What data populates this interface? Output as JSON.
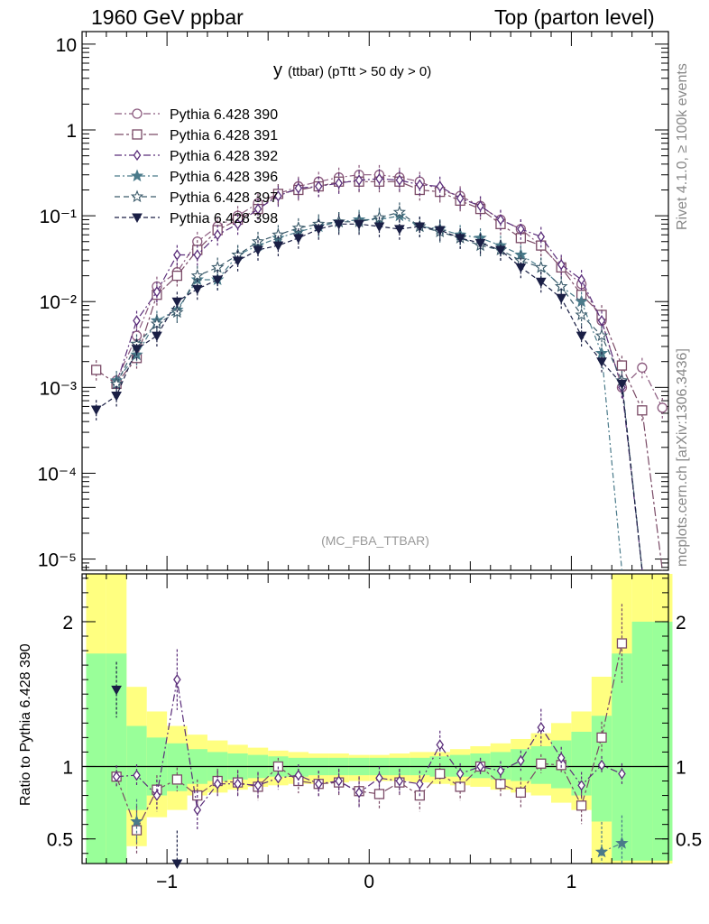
{
  "header": {
    "left": "1960 GeV ppbar",
    "right": "Top (parton level)"
  },
  "side": {
    "rivet": "Rivet 4.1.0, ≥ 100k events",
    "mcplots": "mcplots.cern.ch [arXiv:1306.3436]"
  },
  "chart_data": {
    "type": "line",
    "title": "y (ttbar) (pTtt > 50 dy > 0)",
    "title_main": "y",
    "title_rest": "(ttbar) (pTtt > 50 dy > 0)",
    "analysis": "(MC_FBA_TTBAR)",
    "xlabel": "",
    "ylabel_main": "",
    "ylabel_ratio": "Ratio to Pythia 6.428 390",
    "xlim": [
      -1.42,
      1.48
    ],
    "ylim_main": [
      7.4e-06,
      14
    ],
    "ylim_ratio": [
      0.33,
      2.33
    ],
    "x_ticks": [
      -1,
      0,
      1
    ],
    "x_tick_labels": [
      "−1",
      "0",
      "1"
    ],
    "y_main_tick_labels": [
      "10",
      "1",
      "10⁻¹",
      "10⁻²",
      "10⁻³",
      "10⁻⁴",
      "10⁻⁵"
    ],
    "y_ratio_ticks": [
      0.5,
      1,
      2
    ],
    "y_ratio_tick_labels": [
      "0.5",
      "1",
      "2"
    ],
    "reference_line": 1,
    "x": [
      -1.35,
      -1.25,
      -1.15,
      -1.05,
      -0.95,
      -0.85,
      -0.75,
      -0.65,
      -0.55,
      -0.45,
      -0.35,
      -0.25,
      -0.15,
      -0.05,
      0.05,
      0.15,
      0.25,
      0.35,
      0.45,
      0.55,
      0.65,
      0.75,
      0.85,
      0.95,
      1.05,
      1.15,
      1.25,
      1.35,
      1.45
    ],
    "series": [
      {
        "name": "Pythia 6.428 390",
        "color": "#8b5a7e",
        "marker": "circle",
        "dash": "8,3,2,3",
        "values": [
          0,
          0.0012,
          0.004,
          0.015,
          0.022,
          0.05,
          0.075,
          0.1,
          0.14,
          0.18,
          0.22,
          0.25,
          0.28,
          0.3,
          0.3,
          0.28,
          0.25,
          0.2,
          0.17,
          0.13,
          0.09,
          0.07,
          0.045,
          0.025,
          0.016,
          0.006,
          0.001,
          0.0017,
          0.00058
        ]
      },
      {
        "name": "Pythia 6.428 391",
        "color": "#7a4a66",
        "marker": "square",
        "dash": "10,3,3,3",
        "values": [
          0.0016,
          0.0011,
          0.0022,
          0.012,
          0.02,
          0.04,
          0.068,
          0.09,
          0.12,
          0.18,
          0.2,
          0.22,
          0.25,
          0.25,
          0.25,
          0.25,
          0.2,
          0.19,
          0.15,
          0.12,
          0.08,
          0.055,
          0.045,
          0.025,
          0.012,
          0.007,
          0.0018,
          0.00054,
          0
        ]
      },
      {
        "name": "Pythia 6.428 392",
        "color": "#5a2d7a",
        "marker": "diamond",
        "dash": "8,3,2,3",
        "values": [
          0,
          0.0011,
          0.006,
          0.013,
          0.035,
          0.035,
          0.06,
          0.08,
          0.12,
          0.17,
          0.21,
          0.22,
          0.24,
          0.26,
          0.27,
          0.26,
          0.23,
          0.22,
          0.16,
          0.13,
          0.09,
          0.07,
          0.057,
          0.027,
          0.018,
          0.006,
          0.001,
          0,
          0
        ]
      },
      {
        "name": "Pythia 6.428 396",
        "color": "#4a7a8a",
        "marker": "star-filled",
        "dash": "6,3,2,3",
        "values": [
          0,
          0.0012,
          0.0024,
          0.006,
          0.008,
          0.018,
          0.018,
          0.035,
          0.045,
          0.055,
          0.065,
          0.075,
          0.085,
          0.09,
          0.09,
          0.1,
          0.075,
          0.07,
          0.06,
          0.055,
          0.045,
          0.035,
          0.025,
          0.015,
          0.01,
          0.0025,
          0,
          0,
          0
        ]
      },
      {
        "name": "Pythia 6.428 397",
        "color": "#3a5a6a",
        "marker": "star-open",
        "dash": "6,4",
        "values": [
          0,
          0.0011,
          0.0032,
          0.0055,
          0.0075,
          0.02,
          0.025,
          0.035,
          0.05,
          0.06,
          0.072,
          0.08,
          0.085,
          0.085,
          0.095,
          0.11,
          0.075,
          0.065,
          0.055,
          0.045,
          0.04,
          0.03,
          0.025,
          0.015,
          0.007,
          0.004,
          0.0012,
          0,
          0
        ]
      },
      {
        "name": "Pythia 6.428 398",
        "color": "#1a1f45",
        "marker": "triangle-down",
        "dash": "5,3",
        "values": [
          0.00055,
          0.0008,
          0.0028,
          0.004,
          0.01,
          0.014,
          0.018,
          0.03,
          0.04,
          0.045,
          0.055,
          0.07,
          0.08,
          0.08,
          0.075,
          0.07,
          0.075,
          0.068,
          0.055,
          0.048,
          0.04,
          0.025,
          0.017,
          0.011,
          0.004,
          0.002,
          0.0011,
          0,
          0
        ]
      }
    ],
    "ratio_series": [
      {
        "name": "Pythia 6.428 391",
        "values": [
          null,
          0.93,
          0.56,
          0.84,
          0.91,
          0.8,
          0.9,
          0.89,
          0.86,
          1.0,
          0.9,
          0.88,
          0.89,
          0.83,
          0.81,
          0.89,
          0.8,
          0.95,
          0.86,
          1.0,
          0.88,
          0.82,
          1.02,
          1.01,
          0.73,
          1.2,
          1.85,
          null,
          null
        ]
      },
      {
        "name": "Pythia 6.428 392",
        "values": [
          null,
          0.93,
          0.94,
          0.8,
          1.6,
          0.7,
          0.88,
          0.88,
          0.87,
          0.92,
          0.94,
          0.88,
          0.9,
          0.82,
          0.92,
          0.9,
          0.88,
          1.15,
          0.95,
          1.0,
          0.97,
          1.04,
          1.27,
          1.06,
          0.87,
          1.01,
          0.95,
          null,
          null
        ]
      },
      {
        "name": "Pythia 6.428 396",
        "values": [
          null,
          null,
          0.62,
          null,
          null,
          null,
          null,
          null,
          null,
          null,
          null,
          null,
          null,
          null,
          null,
          null,
          null,
          null,
          null,
          null,
          null,
          null,
          null,
          null,
          null,
          0.41,
          0.47,
          null,
          null
        ]
      },
      {
        "name": "Pythia 6.428 398",
        "values": [
          null,
          1.53,
          null,
          null,
          0.33,
          null,
          null,
          null,
          null,
          null,
          null,
          null,
          null,
          null,
          null,
          null,
          null,
          null,
          null,
          null,
          null,
          null,
          null,
          null,
          null,
          null,
          null,
          null,
          null
        ]
      }
    ],
    "ratio_band_yellow": {
      "lo": [
        0,
        0,
        0.45,
        0.65,
        0.7,
        0.8,
        0.82,
        0.84,
        0.86,
        0.87,
        0.88,
        0.88,
        0.89,
        0.9,
        0.9,
        0.9,
        0.89,
        0.88,
        0.87,
        0.86,
        0.84,
        0.82,
        0.8,
        0.75,
        0.7,
        0.2,
        0,
        0,
        0
      ],
      "hi": [
        2.4,
        2.4,
        1.55,
        1.38,
        1.28,
        1.22,
        1.18,
        1.15,
        1.13,
        1.11,
        1.1,
        1.09,
        1.09,
        1.08,
        1.08,
        1.09,
        1.1,
        1.1,
        1.12,
        1.14,
        1.16,
        1.19,
        1.23,
        1.3,
        1.38,
        1.62,
        2.4,
        2.4,
        2.4
      ]
    },
    "ratio_band_green": {
      "lo": [
        0,
        0,
        0.7,
        0.8,
        0.83,
        0.88,
        0.9,
        0.91,
        0.92,
        0.93,
        0.93,
        0.94,
        0.94,
        0.94,
        0.94,
        0.94,
        0.94,
        0.93,
        0.93,
        0.92,
        0.91,
        0.9,
        0.88,
        0.85,
        0.8,
        0.62,
        0.35,
        0.35,
        0.35
      ],
      "hi": [
        1.78,
        1.78,
        1.28,
        1.2,
        1.16,
        1.12,
        1.1,
        1.09,
        1.08,
        1.07,
        1.06,
        1.06,
        1.06,
        1.06,
        1.06,
        1.06,
        1.06,
        1.07,
        1.08,
        1.09,
        1.1,
        1.12,
        1.14,
        1.18,
        1.24,
        1.35,
        1.78,
        2.0,
        2.0
      ]
    }
  }
}
